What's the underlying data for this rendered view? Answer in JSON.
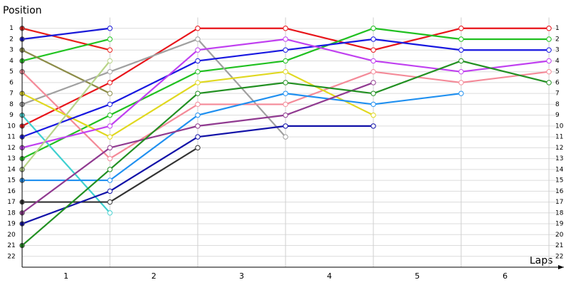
{
  "chart_data": {
    "type": "line",
    "y_label": "Position",
    "x_label": "Laps",
    "x": [
      0,
      1,
      2,
      3,
      4,
      5,
      6
    ],
    "xlim": [
      0,
      6.17
    ],
    "xticks": [
      {
        "value": 0.5,
        "label": "1"
      },
      {
        "value": 1.5,
        "label": "2"
      },
      {
        "value": 2.5,
        "label": "3"
      },
      {
        "value": 3.5,
        "label": "4"
      },
      {
        "value": 4.5,
        "label": "5"
      },
      {
        "value": 5.5,
        "label": "6"
      }
    ],
    "ylim": [
      23,
      0
    ],
    "yticks": [
      1,
      2,
      3,
      4,
      5,
      6,
      7,
      8,
      9,
      10,
      11,
      12,
      13,
      14,
      15,
      16,
      17,
      18,
      19,
      20,
      21,
      22
    ],
    "grid": true,
    "series": [
      {
        "color": "#e8201a",
        "values": [
          1,
          3,
          null,
          null,
          null,
          null,
          null
        ]
      },
      {
        "color": "#e8141a",
        "values": [
          10,
          6,
          1,
          1,
          3,
          1,
          1
        ]
      },
      {
        "color": "#1a1ad8",
        "values": [
          2,
          1,
          null,
          null,
          null,
          null,
          null
        ]
      },
      {
        "color": "#22c422",
        "values": [
          4,
          2,
          null,
          null,
          null,
          null,
          null
        ]
      },
      {
        "color": "#20c020",
        "values": [
          13,
          9,
          5,
          4,
          1,
          2,
          2
        ]
      },
      {
        "color": "#8c8c48",
        "values": [
          3,
          7,
          null,
          null,
          null,
          null,
          null
        ]
      },
      {
        "color": "#a0a0a0",
        "values": [
          8,
          5,
          2,
          11,
          null,
          null,
          null
        ]
      },
      {
        "color": "#f48a98",
        "values": [
          5,
          13,
          8,
          8,
          5,
          6,
          5
        ]
      },
      {
        "color": "#e0d820",
        "values": [
          7,
          11,
          6,
          5,
          9,
          null,
          null
        ]
      },
      {
        "color": "#40d0d0",
        "values": [
          9,
          18,
          null,
          null,
          null,
          null,
          null
        ]
      },
      {
        "color": "#1818e0",
        "values": [
          11,
          8,
          4,
          3,
          2,
          3,
          3
        ]
      },
      {
        "color": "#c040f0",
        "values": [
          12,
          10,
          3,
          2,
          4,
          5,
          4
        ]
      },
      {
        "color": "#b8d488",
        "values": [
          14,
          4,
          null,
          null,
          null,
          null,
          null
        ]
      },
      {
        "color": "#2090f0",
        "values": [
          15,
          15,
          9,
          7,
          8,
          7,
          null
        ]
      },
      {
        "color": "#333333",
        "values": [
          17,
          17,
          12,
          null,
          null,
          null,
          null
        ]
      },
      {
        "color": "#903a90",
        "values": [
          18,
          12,
          10,
          9,
          6,
          null,
          null
        ]
      },
      {
        "color": "#1212a8",
        "values": [
          19,
          16,
          11,
          10,
          10,
          null,
          null
        ]
      },
      {
        "color": "#229022",
        "values": [
          21,
          14,
          7,
          6,
          7,
          4,
          6
        ]
      }
    ]
  }
}
